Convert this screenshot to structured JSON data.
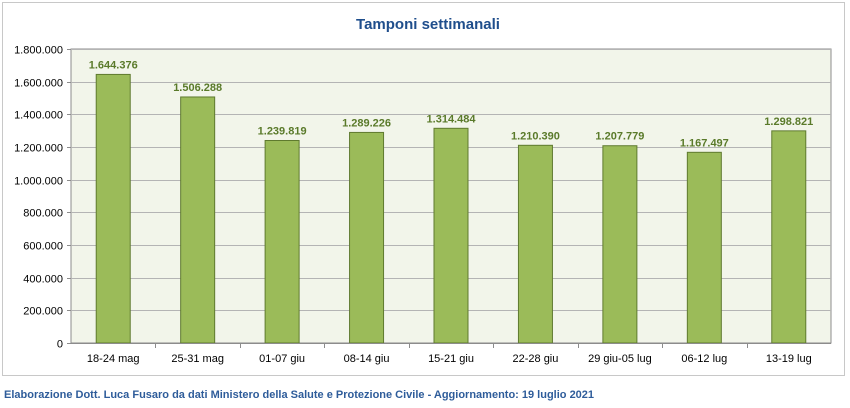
{
  "chart_data": {
    "type": "bar",
    "title": "Tamponi settimanali",
    "categories": [
      "18-24 mag",
      "25-31 mag",
      "01-07 giu",
      "08-14 giu",
      "15-21 giu",
      "22-28 giu",
      "29 giu-05 lug",
      "06-12 lug",
      "13-19 lug"
    ],
    "values": [
      1644376,
      1506288,
      1239819,
      1289226,
      1314484,
      1210390,
      1207779,
      1167497,
      1298821
    ],
    "value_labels": [
      "1.644.376",
      "1.506.288",
      "1.239.819",
      "1.289.226",
      "1.314.484",
      "1.210.390",
      "1.207.779",
      "1.167.497",
      "1.298.821"
    ],
    "ylim": [
      0,
      1800000
    ],
    "yticks": [
      0,
      200000,
      400000,
      600000,
      800000,
      1000000,
      1200000,
      1400000,
      1600000,
      1800000
    ],
    "ytick_labels": [
      "0",
      "200.000",
      "400.000",
      "600.000",
      "800.000",
      "1.000.000",
      "1.200.000",
      "1.400.000",
      "1.600.000",
      "1.800.000"
    ],
    "xlabel": "",
    "ylabel": "",
    "grid": true,
    "legend": "none",
    "colors": {
      "bar_fill": "#9bbb59",
      "bar_stroke": "#5f7a2f",
      "plot_background": "#f2f5ea",
      "gridline": "#b4b4b4",
      "title": "#1f4e8c",
      "data_label": "#5a7a2a"
    }
  },
  "footer": {
    "credit": "Elaborazione Dott. Luca Fusaro da dati Ministero della Salute e Protezione Civile - Aggiornamento: 19 luglio 2021"
  }
}
